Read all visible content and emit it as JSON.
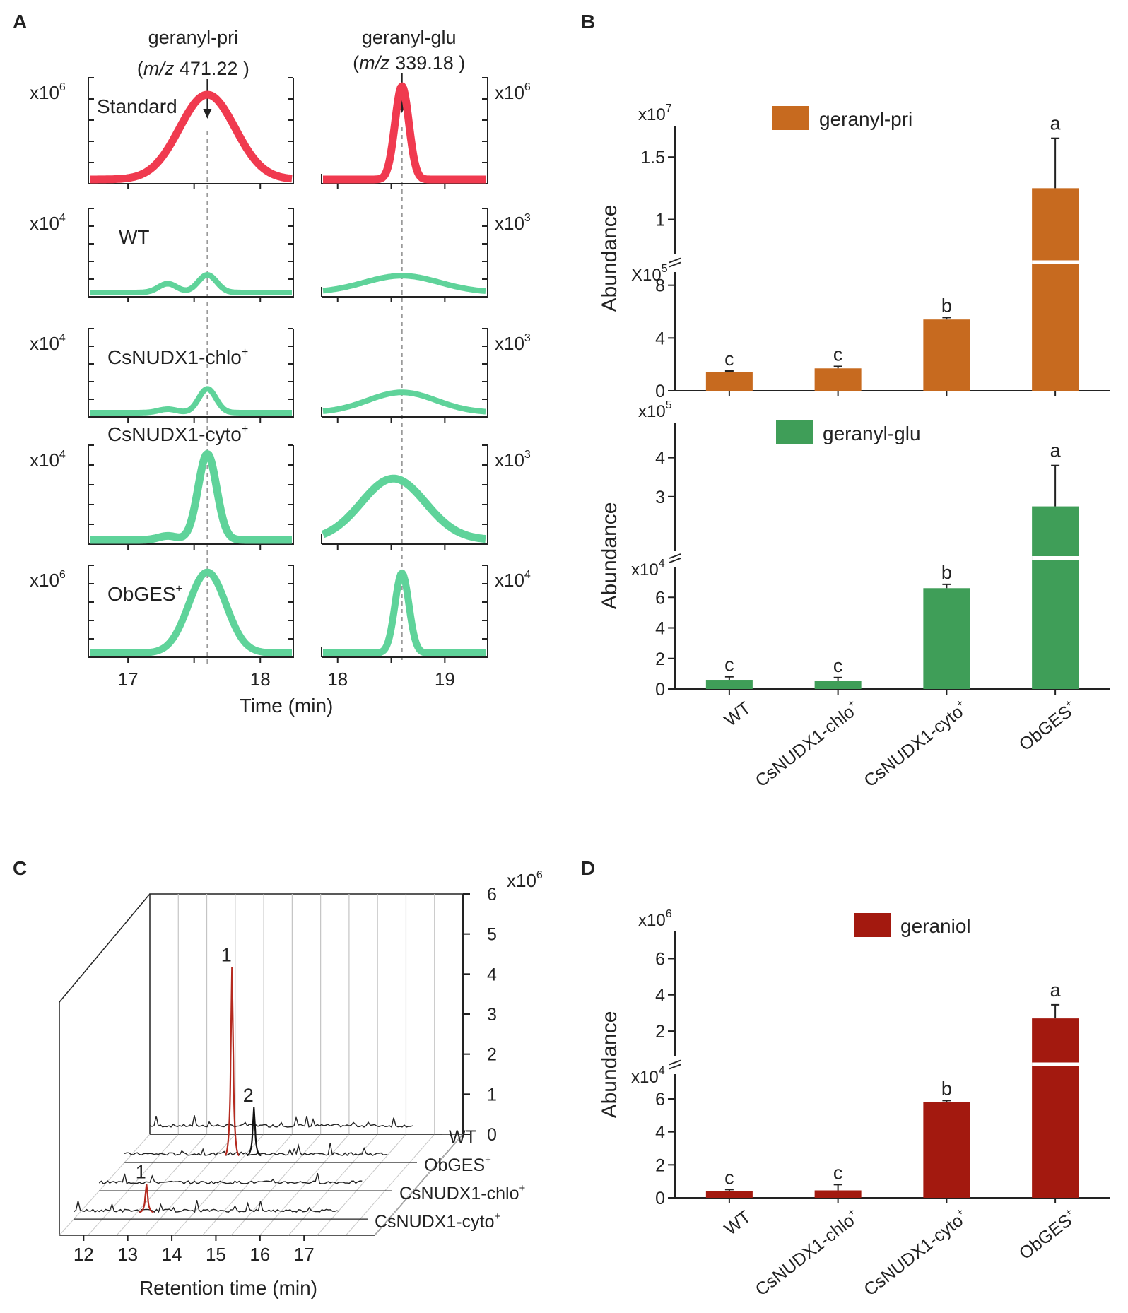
{
  "chart_data": [
    {
      "panel": "A",
      "type": "line",
      "title_left": "geranyl-pri",
      "mz_left_label": "m/z",
      "mz_left_value": " 471.22 ",
      "title_right": "geranyl-glu",
      "mz_right_label": "m/z",
      "mz_right_value": " 339.18 ",
      "xlabel": "Time (min)",
      "left_xticks": [
        "17",
        "18"
      ],
      "right_xticks": [
        "18",
        "19"
      ],
      "left_xlim": [
        16.7,
        18.25
      ],
      "right_xlim": [
        17.85,
        19.4
      ],
      "peak_left_time": 17.6,
      "peak_right_time": 18.6,
      "series": [
        {
          "name": "Standard",
          "color": "#f03a4f",
          "left_scale": "x10",
          "left_exp": "6",
          "right_scale": "x10",
          "right_exp": "6",
          "left_peak": 0.8,
          "left_minor": 0,
          "left_width": 0.21,
          "right_peak": 0.88,
          "right_width": 0.065,
          "thickness": 11
        },
        {
          "name": "WT",
          "color": "#5fd39a",
          "left_scale": "x10",
          "left_exp": "4",
          "right_scale": "x10",
          "right_exp": "3",
          "left_peak": 0.2,
          "left_minor": 0.1,
          "left_width": 0.07,
          "right_peak": 0.19,
          "right_width": 0.35,
          "thickness": 8
        },
        {
          "name": "CsNUDX1-chlo",
          "sup": "+",
          "color": "#5fd39a",
          "left_scale": "x10",
          "left_exp": "4",
          "right_scale": "x10",
          "right_exp": "3",
          "left_peak": 0.27,
          "left_minor": 0.04,
          "left_width": 0.065,
          "right_peak": 0.23,
          "right_width": 0.32,
          "thickness": 8
        },
        {
          "name": "CsNUDX1-cyto",
          "sup": "+",
          "color": "#5fd39a",
          "left_scale": "x10",
          "left_exp": "4",
          "right_scale": "x10",
          "right_exp": "3",
          "left_peak": 0.87,
          "left_minor": 0.04,
          "left_width": 0.07,
          "right_peak": 0.62,
          "right_width": 0.3,
          "thickness": 11
        },
        {
          "name": "ObGES",
          "sup": "+",
          "color": "#5fd39a",
          "left_scale": "x10",
          "left_exp": "6",
          "right_scale": "x10",
          "right_exp": "4",
          "left_peak": 0.88,
          "left_minor": 0,
          "left_width": 0.14,
          "right_peak": 0.87,
          "right_width": 0.065,
          "thickness": 10
        }
      ]
    },
    {
      "panel": "B",
      "type": "bar",
      "categories": [
        {
          "name": "WT",
          "sup": ""
        },
        {
          "name": "CsNUDX1-chlo",
          "sup": "+"
        },
        {
          "name": "CsNUDX1-cyto",
          "sup": "+"
        },
        {
          "name": "ObGES",
          "sup": "+"
        }
      ],
      "ylabel": "Abundance",
      "subplots": [
        {
          "legend": "geranyl-pri",
          "color": "#c76a1f",
          "values": [
            1.4,
            1.7,
            5.4,
            125
          ],
          "errors": [
            0.1,
            0.15,
            0.15,
            40
          ],
          "letters": [
            "c",
            "c",
            "b",
            "a"
          ],
          "lower": {
            "scale": "X10",
            "exp": "5",
            "ylim": [
              0,
              9
            ],
            "ticks": [
              "0",
              "4",
              "8"
            ]
          },
          "upper": {
            "scale": "x10",
            "exp": "7",
            "ylim": [
              0.72,
              1.75
            ],
            "ticks": [
              "1",
              "1.5"
            ],
            "value_scale": 100
          }
        },
        {
          "legend": "geranyl-glu",
          "color": "#3f9e58",
          "values": [
            0.6,
            0.55,
            6.6,
            27.5
          ],
          "errors": [
            0.2,
            0.2,
            0.25,
            10.5
          ],
          "letters": [
            "c",
            "c",
            "b",
            "a"
          ],
          "lower": {
            "scale": "x10",
            "exp": "4",
            "ylim": [
              0,
              8
            ],
            "ticks": [
              "0",
              "2",
              "4",
              "6"
            ]
          },
          "upper": {
            "scale": "x10",
            "exp": "5",
            "ylim": [
              1.6,
              4.9
            ],
            "ticks": [
              "3",
              "4"
            ],
            "value_scale": 10
          }
        }
      ]
    },
    {
      "panel": "C",
      "type": "line",
      "xlabel": "Retention time (min)",
      "xticks": [
        "12",
        "13",
        "14",
        "15",
        "16",
        "17"
      ],
      "z_scale": "x10",
      "z_exp": "6",
      "zticks": [
        "0",
        "1",
        "2",
        "3",
        "4",
        "5",
        "6"
      ],
      "traces": [
        {
          "name": "WT",
          "sup": ""
        },
        {
          "name": "ObGES",
          "sup": "+"
        },
        {
          "name": "CsNUDX1-chlo",
          "sup": "+"
        },
        {
          "name": "CsNUDX1-cyto",
          "sup": "+"
        }
      ],
      "peaks": [
        {
          "label": "1",
          "trace": "ObGES",
          "rt": 13.9,
          "height": 4.7,
          "color": "#b52a1f"
        },
        {
          "label": "2",
          "trace": "ObGES",
          "rt": 14.4,
          "height": 1.2,
          "color": "#111111"
        },
        {
          "label": "1",
          "trace": "CsNUDX1-cyto",
          "rt": 13.1,
          "height": 0.7,
          "color": "#b52a1f"
        }
      ]
    },
    {
      "panel": "D",
      "type": "bar",
      "legend": "geraniol",
      "color": "#a3190f",
      "ylabel": "Abundance",
      "categories": [
        {
          "name": "WT",
          "sup": ""
        },
        {
          "name": "CsNUDX1-chlo",
          "sup": "+"
        },
        {
          "name": "CsNUDX1-cyto",
          "sup": "+"
        },
        {
          "name": "ObGES",
          "sup": "+"
        }
      ],
      "values": [
        0.4,
        0.45,
        5.8,
        270
      ],
      "errors": [
        0.1,
        0.35,
        0.1,
        75
      ],
      "letters": [
        "c",
        "c",
        "b",
        "a"
      ],
      "lower": {
        "scale": "x10",
        "exp": "4",
        "ylim": [
          0,
          7.5
        ],
        "ticks": [
          "0",
          "2",
          "4",
          "6"
        ]
      },
      "upper": {
        "scale": "x10",
        "exp": "6",
        "ylim": [
          0.6,
          7.5
        ],
        "ticks": [
          "2",
          "4",
          "6"
        ],
        "value_scale": 100
      }
    }
  ],
  "panel_letters": [
    "A",
    "B",
    "C",
    "D"
  ]
}
